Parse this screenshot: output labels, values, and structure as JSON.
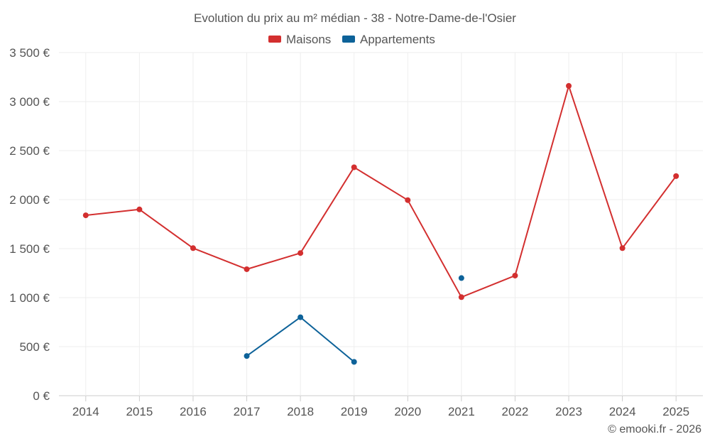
{
  "chart_data": {
    "type": "line",
    "title": "Evolution du prix au m² médian - 38 - Notre-Dame-de-l'Osier",
    "categories": [
      "2014",
      "2015",
      "2016",
      "2017",
      "2018",
      "2019",
      "2020",
      "2021",
      "2022",
      "2023",
      "2024",
      "2025"
    ],
    "series": [
      {
        "name": "Maisons",
        "color": "#d32f2f",
        "values": [
          1840,
          1900,
          1505,
          1290,
          1455,
          2330,
          1995,
          1005,
          1225,
          3160,
          1505,
          2240
        ]
      },
      {
        "name": "Appartements",
        "color": "#0d6299",
        "values": [
          null,
          null,
          null,
          405,
          800,
          345,
          null,
          1200,
          null,
          null,
          null,
          null
        ]
      }
    ],
    "ylim": [
      0,
      3500
    ],
    "yticks": [
      0,
      500,
      1000,
      1500,
      2000,
      2500,
      3000,
      3500
    ],
    "ytick_labels": [
      "0 €",
      "500 €",
      "1 000 €",
      "1 500 €",
      "2 000 €",
      "2 500 €",
      "3 000 €",
      "3 500 €"
    ],
    "grid": true,
    "legend": "top-center",
    "credit": "© emooki.fr - 2026"
  }
}
